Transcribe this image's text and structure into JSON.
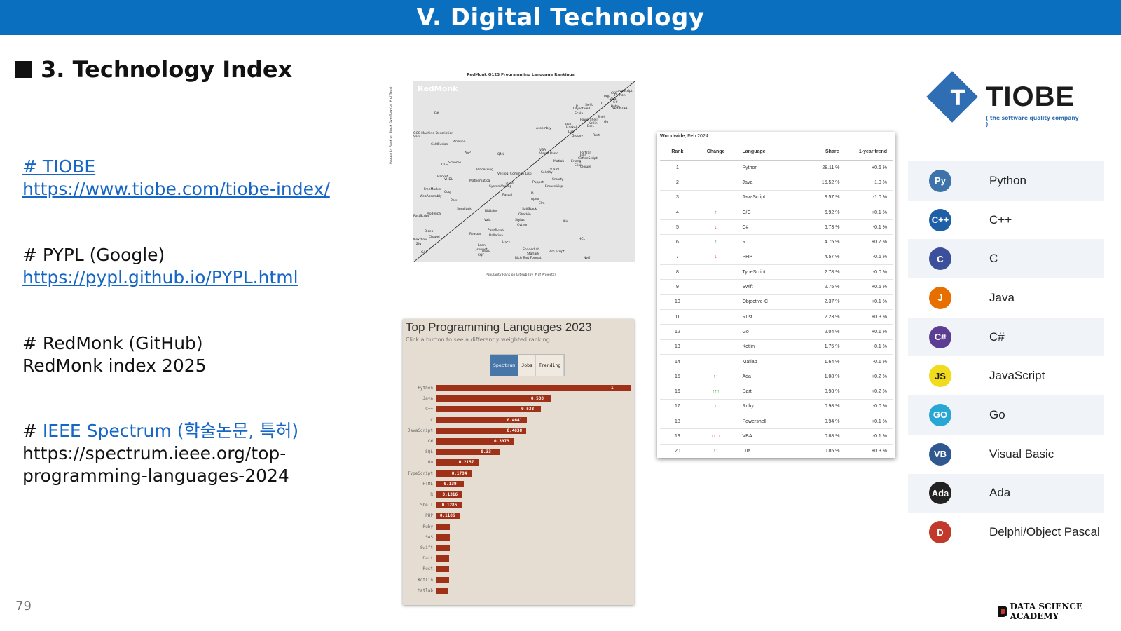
{
  "header": {
    "title": "V. Digital Technology"
  },
  "section": {
    "title": "3. Technology Index"
  },
  "links": [
    {
      "label": "# TIOBE",
      "url": "https://www.tiobe.com/tiobe-index/"
    },
    {
      "label": "# PYPL (Google)",
      "url": "https://pypl.github.io/PYPL.html"
    },
    {
      "label": "# RedMonk (GitHub)",
      "url": "RedMonk index 2025"
    },
    {
      "label_prefix": "# ",
      "label": "IEEE Spectrum (학술논문, 특허)",
      "url_line1": "https://spectrum.ieee.org/top-",
      "url_line2": "programming-languages-2024"
    }
  ],
  "footer": {
    "page_number": "79",
    "brand": "DATA SCIENCE ACADEMY"
  },
  "redmonk": {
    "title": "RedMonk Q123 Programming Language Rankings",
    "watermark": "RedMonk",
    "xlabel": "Popularity Rank on GitHub (by # of Projects)",
    "ylabel": "Popularity Rank on Stack Overflow (by # of Tags)",
    "labels": [
      "JavaScript",
      "Python",
      "Java",
      "PHP",
      "C#",
      "C++",
      "CSS",
      "TypeScript",
      "Ruby",
      "C",
      "Swift",
      "R",
      "Objective-C",
      "Scala",
      "Shell",
      "Go",
      "PowerShell",
      "Kotlin",
      "Rust",
      "Dart",
      "Perl",
      "Haskell",
      "Groovy",
      "Lua",
      "VBA",
      "Visual Basic",
      "Matlab",
      "Assembly",
      "F#",
      "Fortran",
      "Erlang",
      "CoffeeScript",
      "Clojure",
      "Julia",
      "Elixir",
      "OCaml",
      "GCC Machine Description",
      "Sass",
      "Arduino",
      "ColdFusion",
      "ASP",
      "Scheme",
      "GLSL",
      "QML",
      "Processing",
      "Verilog",
      "Common Lisp",
      "Solidity",
      "Racket",
      "VHDL",
      "Mathematica",
      "SystemVerilog",
      "Puppet",
      "Smarty",
      "Emacs Lisp",
      "Liquid",
      "FreeMarker",
      "Coq",
      "WebAssembly",
      "Raku",
      "Pascal",
      "Smalltalk",
      "D",
      "Apex",
      "Elm",
      "SaltStack",
      "BitBake",
      "PostScript",
      "Modelica",
      "Gherkin",
      "Vala",
      "Stylus",
      "Cython",
      "Nix",
      "Bicep",
      "PureScript",
      "Reason",
      "Ballerina",
      "HCL",
      "Nextflow",
      "Chapel",
      "Zig",
      "Lean",
      "Hack",
      "Jsonnet",
      "Astro",
      "ShaderLab",
      "Starlark",
      "Vim script",
      "GAP",
      "SQF",
      "Rich Text Format",
      "Nyff"
    ],
    "tick_labels": [
      "0",
      "20",
      "40",
      "60",
      "80",
      "100"
    ]
  },
  "ieee": {
    "title": "Top Programming Languages 2023",
    "subtitle": "Click a button to see a differently weighted ranking",
    "buttons": [
      "Spectrum",
      "Jobs",
      "Trending"
    ],
    "active_button": "Spectrum"
  },
  "tiobe_table": {
    "caption_bold": "Worldwide",
    "caption_rest": ", Feb 2024 :",
    "headers": [
      "Rank",
      "Change",
      "Language",
      "Share",
      "1-year trend"
    ],
    "rows": [
      {
        "rank": "1",
        "change": "",
        "dir": "",
        "language": "Python",
        "share": "28.11 %",
        "trend": "+0.6 %"
      },
      {
        "rank": "2",
        "change": "",
        "dir": "",
        "language": "Java",
        "share": "15.52 %",
        "trend": "-1.0 %"
      },
      {
        "rank": "3",
        "change": "",
        "dir": "",
        "language": "JavaScript",
        "share": "8.57 %",
        "trend": "-1.0 %"
      },
      {
        "rank": "4",
        "change": "↑",
        "dir": "up",
        "language": "C/C++",
        "share": "6.92 %",
        "trend": "+0.1 %"
      },
      {
        "rank": "5",
        "change": "↓",
        "dir": "down",
        "language": "C#",
        "share": "6.73 %",
        "trend": "-0.1 %"
      },
      {
        "rank": "6",
        "change": "↑",
        "dir": "up",
        "language": "R",
        "share": "4.75 %",
        "trend": "+0.7 %"
      },
      {
        "rank": "7",
        "change": "↓",
        "dir": "down",
        "language": "PHP",
        "share": "4.57 %",
        "trend": "-0.6 %"
      },
      {
        "rank": "8",
        "change": "",
        "dir": "",
        "language": "TypeScript",
        "share": "2.78 %",
        "trend": "-0.0 %"
      },
      {
        "rank": "9",
        "change": "",
        "dir": "",
        "language": "Swift",
        "share": "2.75 %",
        "trend": "+0.5 %"
      },
      {
        "rank": "10",
        "change": "",
        "dir": "",
        "language": "Objective-C",
        "share": "2.37 %",
        "trend": "+0.1 %"
      },
      {
        "rank": "11",
        "change": "",
        "dir": "",
        "language": "Rust",
        "share": "2.23 %",
        "trend": "+0.3 %"
      },
      {
        "rank": "12",
        "change": "",
        "dir": "",
        "language": "Go",
        "share": "2.04 %",
        "trend": "+0.1 %"
      },
      {
        "rank": "13",
        "change": "",
        "dir": "",
        "language": "Kotlin",
        "share": "1.75 %",
        "trend": "-0.1 %"
      },
      {
        "rank": "14",
        "change": "",
        "dir": "",
        "language": "Matlab",
        "share": "1.64 %",
        "trend": "-0.1 %"
      },
      {
        "rank": "15",
        "change": "↑↑",
        "dir": "up",
        "language": "Ada",
        "share": "1.08 %",
        "trend": "+0.2 %"
      },
      {
        "rank": "16",
        "change": "↑↑↑",
        "dir": "up",
        "language": "Dart",
        "share": "0.98 %",
        "trend": "+0.2 %"
      },
      {
        "rank": "17",
        "change": "↓",
        "dir": "down",
        "language": "Ruby",
        "share": "0.98 %",
        "trend": "-0.0 %"
      },
      {
        "rank": "18",
        "change": "",
        "dir": "",
        "language": "Powershell",
        "share": "0.94 %",
        "trend": "+0.1 %"
      },
      {
        "rank": "19",
        "change": "↓↓↓↓",
        "dir": "down",
        "language": "VBA",
        "share": "0.88 %",
        "trend": "-0.1 %"
      },
      {
        "rank": "20",
        "change": "↑↑",
        "dir": "up",
        "language": "Lua",
        "share": "0.85 %",
        "trend": "+0.3 %"
      }
    ]
  },
  "tiobe_logo": {
    "word": "TIOBE",
    "tagline": "( the software quality company )"
  },
  "tiobe_list": [
    {
      "name": "Python",
      "icon": "python-icon",
      "icon_text": "Py",
      "color": "#3d73a8"
    },
    {
      "name": "C++",
      "icon": "cpp-icon",
      "icon_text": "C++",
      "color": "#1f5fa8"
    },
    {
      "name": "C",
      "icon": "c-icon",
      "icon_text": "C",
      "color": "#3b4f9a"
    },
    {
      "name": "Java",
      "icon": "java-icon",
      "icon_text": "J",
      "color": "#e76f00"
    },
    {
      "name": "C#",
      "icon": "csharp-icon",
      "icon_text": "C#",
      "color": "#5b3d91"
    },
    {
      "name": "JavaScript",
      "icon": "javascript-icon",
      "icon_text": "JS",
      "color": "#f0db1c"
    },
    {
      "name": "Go",
      "icon": "go-icon",
      "icon_text": "GO",
      "color": "#29a7d4"
    },
    {
      "name": "Visual Basic",
      "icon": "visual-basic-icon",
      "icon_text": "VB",
      "color": "#305890"
    },
    {
      "name": "Ada",
      "icon": "ada-icon",
      "icon_text": "Ada",
      "color": "#222222"
    },
    {
      "name": "Delphi/Object Pascal",
      "icon": "delphi-icon",
      "icon_text": "D",
      "color": "#c0392b"
    }
  ],
  "chart_data": {
    "type": "bar",
    "title": "Top Programming Languages 2023",
    "categories": [
      "Python",
      "Java",
      "C++",
      "C",
      "JavaScript",
      "C#",
      "SQL",
      "Go",
      "TypeScript",
      "HTML",
      "R",
      "Shell",
      "PHP",
      "Ruby",
      "SAS",
      "Swift",
      "Dart",
      "Rust",
      "Kotlin",
      "Matlab"
    ],
    "values": [
      1,
      0.588,
      0.538,
      0.4641,
      0.4638,
      0.3973,
      0.33,
      0.2157,
      0.1794,
      0.139,
      0.1316,
      0.1286,
      0.1186,
      0.07,
      0.068,
      0.067,
      0.066,
      0.065,
      0.064,
      0.06
    ],
    "value_labels": [
      "1",
      "0.588",
      "0.538",
      "0.4641",
      "0.4638",
      "0.3973",
      "0.33",
      "0.2157",
      "0.1794",
      "0.139",
      "0.1316",
      "0.1286",
      "0.1186",
      "",
      "",
      "",
      "",
      "",
      "",
      ""
    ],
    "xlim": [
      0,
      1
    ]
  }
}
